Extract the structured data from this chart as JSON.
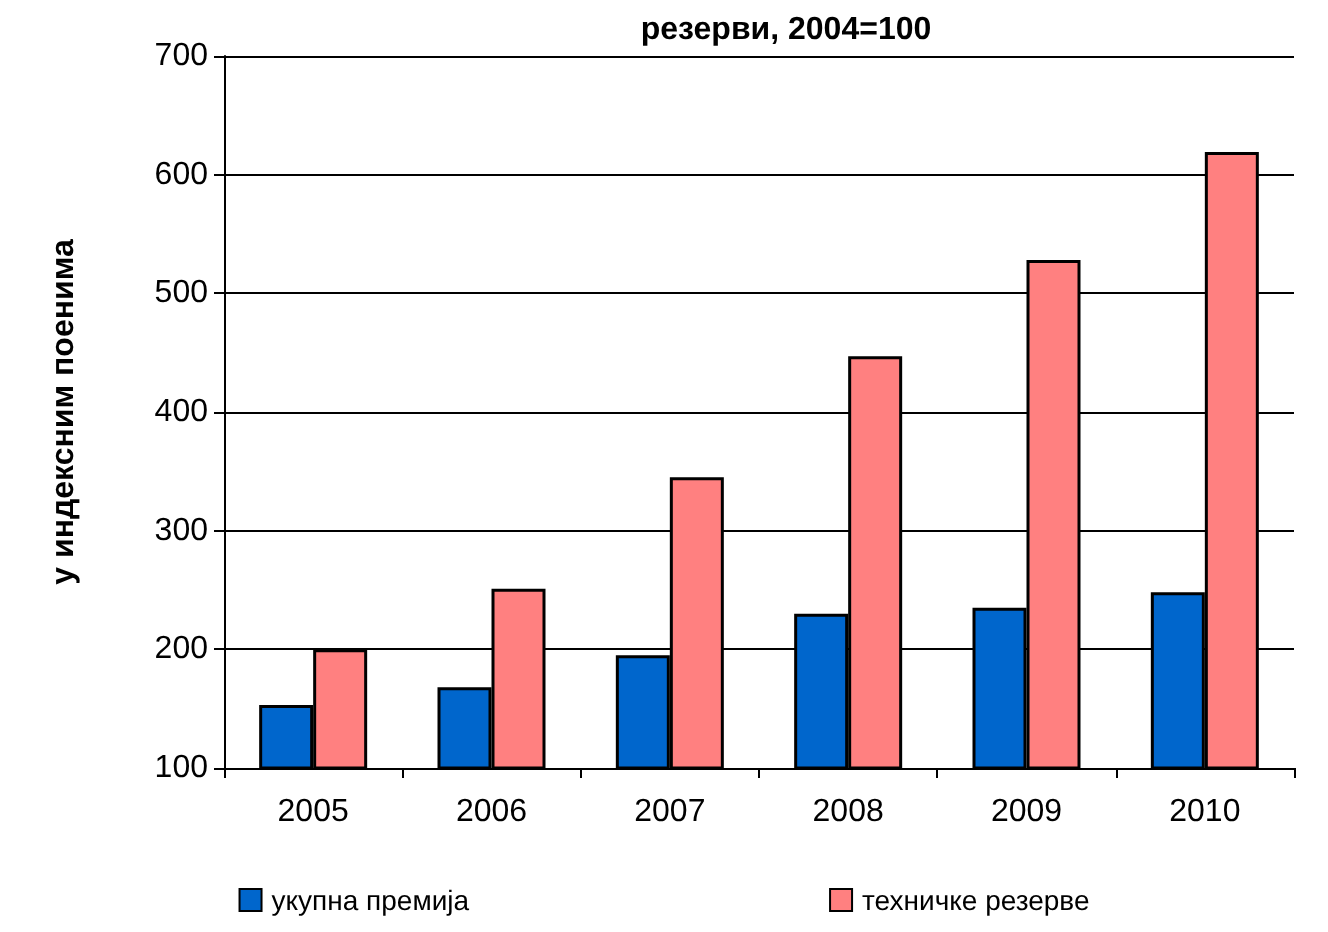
{
  "chart_data": {
    "type": "bar",
    "title": "резерви, 2004=100",
    "ylabel": "у индексним поенима",
    "categories": [
      "2005",
      "2006",
      "2007",
      "2008",
      "2009",
      "2010"
    ],
    "series": [
      {
        "name": "укупна премија",
        "color": "#0066cc",
        "values": [
          153,
          168,
          195,
          230,
          235,
          248
        ]
      },
      {
        "name": "техничке резерве",
        "color": "#ff8080",
        "values": [
          200,
          251,
          345,
          447,
          528,
          619
        ]
      }
    ],
    "ylim": [
      100,
      700
    ],
    "yticks": [
      100,
      200,
      300,
      400,
      500,
      600,
      700
    ],
    "grid": "y",
    "legend": "bottom"
  }
}
